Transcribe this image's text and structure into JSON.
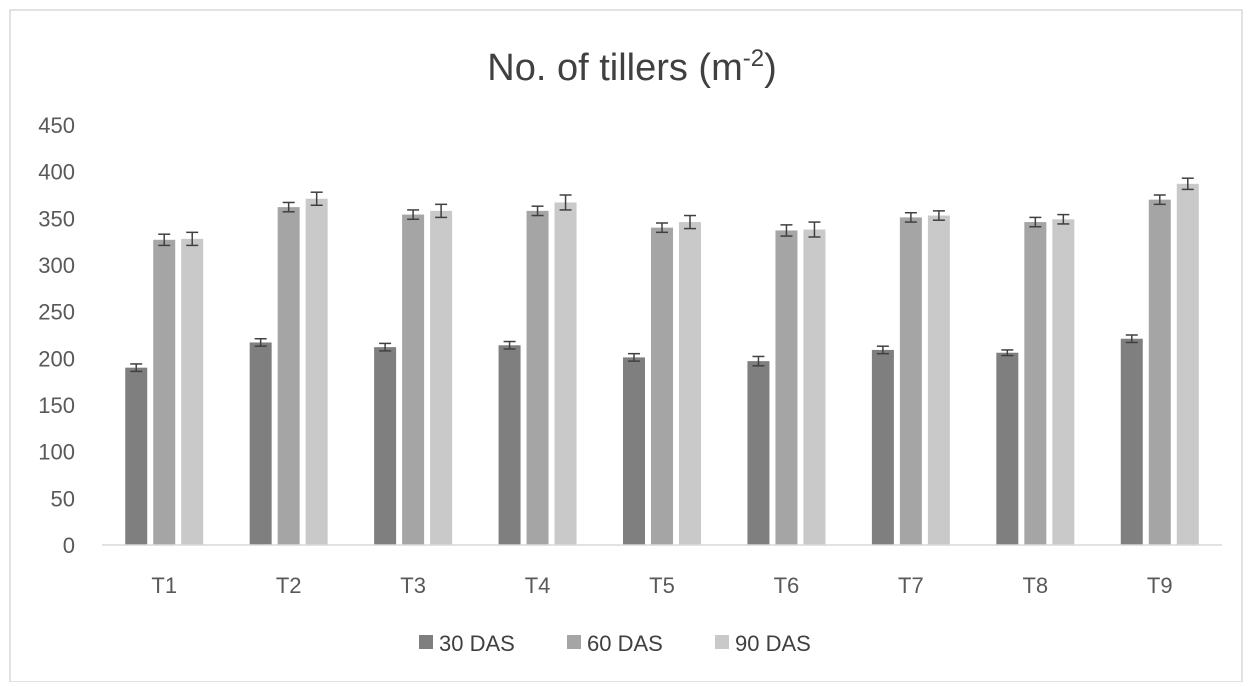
{
  "chart_data": {
    "type": "bar",
    "title_main": "No. of tillers (m",
    "title_sup": "-2",
    "title_close": ")",
    "categories": [
      "T1",
      "T2",
      "T3",
      "T4",
      "T5",
      "T6",
      "T7",
      "T8",
      "T9"
    ],
    "series": [
      {
        "name": "30 DAS",
        "color": "#7f7f7f",
        "values": [
          190,
          217,
          212,
          214,
          201,
          197,
          209,
          206,
          221
        ],
        "errors": [
          4,
          4,
          4,
          4,
          4,
          5,
          4,
          3,
          4
        ]
      },
      {
        "name": "60 DAS",
        "color": "#a5a5a5",
        "values": [
          327,
          362,
          354,
          358,
          340,
          337,
          351,
          346,
          370
        ],
        "errors": [
          6,
          5,
          5,
          5,
          5,
          6,
          5,
          5,
          5
        ]
      },
      {
        "name": "90 DAS",
        "color": "#c9c9c9",
        "values": [
          328,
          371,
          358,
          367,
          346,
          338,
          353,
          349,
          387
        ],
        "errors": [
          7,
          7,
          7,
          8,
          7,
          8,
          5,
          5,
          6
        ]
      }
    ],
    "ylim": [
      0,
      450
    ],
    "yticks": [
      0,
      50,
      100,
      150,
      200,
      250,
      300,
      350,
      400,
      450
    ],
    "grid": false,
    "legend_position": "bottom",
    "xlabel": "",
    "ylabel": ""
  }
}
